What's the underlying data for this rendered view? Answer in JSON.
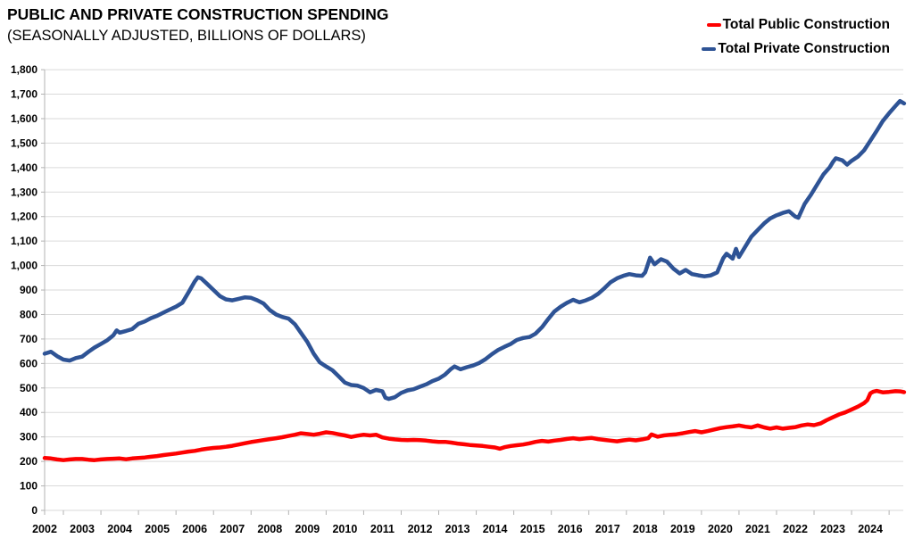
{
  "chart_data": {
    "type": "line",
    "title": "PUBLIC AND PRIVATE CONSTRUCTION SPENDING",
    "subtitle": "(SEASONALLY ADJUSTED, BILLIONS OF DOLLARS)",
    "ylim": [
      0,
      1800
    ],
    "y_tick_step": 100,
    "y_tick_labels": [
      "0",
      "100",
      "200",
      "300",
      "400",
      "500",
      "600",
      "700",
      "800",
      "900",
      "1,000",
      "1,100",
      "1,200",
      "1,300",
      "1,400",
      "1,500",
      "1,600",
      "1,700",
      "1,800"
    ],
    "x_tick_labels": [
      "2002",
      "2003",
      "2004",
      "2005",
      "2006",
      "2007",
      "2008",
      "2009",
      "2010",
      "2011",
      "2012",
      "2013",
      "2014",
      "2015",
      "2016",
      "2017",
      "2018",
      "2019",
      "2020",
      "2021",
      "2022",
      "2023",
      "2024"
    ],
    "x_range": [
      2002,
      2024.95
    ],
    "grid": true,
    "legend_position": "top-right",
    "grid_color": "#dadada",
    "axis_color": "#b3b3b3",
    "series": [
      {
        "name": "Total Public Construction",
        "color": "#fe0000",
        "points": [
          [
            2002.0,
            214
          ],
          [
            2002.17,
            212
          ],
          [
            2002.33,
            208
          ],
          [
            2002.5,
            205
          ],
          [
            2002.67,
            208
          ],
          [
            2002.83,
            210
          ],
          [
            2003.0,
            210
          ],
          [
            2003.17,
            207
          ],
          [
            2003.33,
            205
          ],
          [
            2003.5,
            208
          ],
          [
            2003.67,
            210
          ],
          [
            2003.83,
            211
          ],
          [
            2004.0,
            212
          ],
          [
            2004.17,
            209
          ],
          [
            2004.33,
            212
          ],
          [
            2004.5,
            214
          ],
          [
            2004.67,
            216
          ],
          [
            2004.83,
            219
          ],
          [
            2005.0,
            222
          ],
          [
            2005.17,
            226
          ],
          [
            2005.33,
            229
          ],
          [
            2005.5,
            232
          ],
          [
            2005.67,
            236
          ],
          [
            2005.83,
            240
          ],
          [
            2006.0,
            243
          ],
          [
            2006.17,
            248
          ],
          [
            2006.33,
            252
          ],
          [
            2006.5,
            255
          ],
          [
            2006.67,
            257
          ],
          [
            2006.83,
            260
          ],
          [
            2007.0,
            264
          ],
          [
            2007.17,
            269
          ],
          [
            2007.33,
            274
          ],
          [
            2007.5,
            279
          ],
          [
            2007.67,
            283
          ],
          [
            2007.83,
            287
          ],
          [
            2008.0,
            291
          ],
          [
            2008.17,
            295
          ],
          [
            2008.33,
            299
          ],
          [
            2008.5,
            304
          ],
          [
            2008.67,
            309
          ],
          [
            2008.83,
            315
          ],
          [
            2009.0,
            312
          ],
          [
            2009.17,
            309
          ],
          [
            2009.33,
            313
          ],
          [
            2009.5,
            319
          ],
          [
            2009.67,
            316
          ],
          [
            2009.83,
            311
          ],
          [
            2010.0,
            306
          ],
          [
            2010.17,
            300
          ],
          [
            2010.33,
            305
          ],
          [
            2010.5,
            309
          ],
          [
            2010.67,
            306
          ],
          [
            2010.83,
            309
          ],
          [
            2011.0,
            298
          ],
          [
            2011.17,
            293
          ],
          [
            2011.33,
            290
          ],
          [
            2011.5,
            288
          ],
          [
            2011.67,
            287
          ],
          [
            2011.83,
            288
          ],
          [
            2012.0,
            287
          ],
          [
            2012.17,
            285
          ],
          [
            2012.33,
            282
          ],
          [
            2012.5,
            280
          ],
          [
            2012.67,
            280
          ],
          [
            2012.83,
            277
          ],
          [
            2013.0,
            273
          ],
          [
            2013.17,
            270
          ],
          [
            2013.33,
            267
          ],
          [
            2013.5,
            265
          ],
          [
            2013.67,
            263
          ],
          [
            2013.83,
            260
          ],
          [
            2014.0,
            257
          ],
          [
            2014.13,
            252
          ],
          [
            2014.25,
            258
          ],
          [
            2014.42,
            263
          ],
          [
            2014.58,
            266
          ],
          [
            2014.75,
            269
          ],
          [
            2014.92,
            274
          ],
          [
            2015.08,
            280
          ],
          [
            2015.25,
            284
          ],
          [
            2015.42,
            281
          ],
          [
            2015.58,
            285
          ],
          [
            2015.75,
            288
          ],
          [
            2015.92,
            292
          ],
          [
            2016.08,
            295
          ],
          [
            2016.25,
            291
          ],
          [
            2016.42,
            294
          ],
          [
            2016.58,
            296
          ],
          [
            2016.75,
            291
          ],
          [
            2016.92,
            288
          ],
          [
            2017.08,
            285
          ],
          [
            2017.25,
            282
          ],
          [
            2017.42,
            286
          ],
          [
            2017.58,
            289
          ],
          [
            2017.75,
            286
          ],
          [
            2017.92,
            290
          ],
          [
            2018.08,
            295
          ],
          [
            2018.17,
            310
          ],
          [
            2018.33,
            301
          ],
          [
            2018.5,
            306
          ],
          [
            2018.67,
            309
          ],
          [
            2018.83,
            311
          ],
          [
            2019.0,
            315
          ],
          [
            2019.17,
            320
          ],
          [
            2019.33,
            324
          ],
          [
            2019.5,
            319
          ],
          [
            2019.67,
            324
          ],
          [
            2019.83,
            330
          ],
          [
            2020.0,
            336
          ],
          [
            2020.17,
            340
          ],
          [
            2020.33,
            343
          ],
          [
            2020.5,
            347
          ],
          [
            2020.67,
            342
          ],
          [
            2020.83,
            339
          ],
          [
            2021.0,
            347
          ],
          [
            2021.17,
            339
          ],
          [
            2021.33,
            334
          ],
          [
            2021.5,
            339
          ],
          [
            2021.67,
            334
          ],
          [
            2021.83,
            337
          ],
          [
            2022.0,
            340
          ],
          [
            2022.17,
            347
          ],
          [
            2022.33,
            351
          ],
          [
            2022.5,
            348
          ],
          [
            2022.67,
            355
          ],
          [
            2022.83,
            368
          ],
          [
            2023.0,
            380
          ],
          [
            2023.17,
            392
          ],
          [
            2023.33,
            400
          ],
          [
            2023.5,
            412
          ],
          [
            2023.67,
            424
          ],
          [
            2023.83,
            438
          ],
          [
            2023.92,
            450
          ],
          [
            2024.0,
            478
          ],
          [
            2024.08,
            485
          ],
          [
            2024.17,
            488
          ],
          [
            2024.33,
            482
          ],
          [
            2024.5,
            484
          ],
          [
            2024.67,
            487
          ],
          [
            2024.79,
            486
          ],
          [
            2024.9,
            483
          ]
        ]
      },
      {
        "name": "Total Private Construction",
        "color": "#2e5395",
        "points": [
          [
            2002.0,
            640
          ],
          [
            2002.17,
            648
          ],
          [
            2002.33,
            630
          ],
          [
            2002.5,
            616
          ],
          [
            2002.67,
            612
          ],
          [
            2002.83,
            622
          ],
          [
            2003.0,
            628
          ],
          [
            2003.17,
            648
          ],
          [
            2003.33,
            665
          ],
          [
            2003.5,
            680
          ],
          [
            2003.67,
            695
          ],
          [
            2003.83,
            715
          ],
          [
            2003.92,
            735
          ],
          [
            2004.0,
            726
          ],
          [
            2004.17,
            733
          ],
          [
            2004.33,
            740
          ],
          [
            2004.5,
            762
          ],
          [
            2004.67,
            772
          ],
          [
            2004.83,
            785
          ],
          [
            2005.0,
            795
          ],
          [
            2005.17,
            808
          ],
          [
            2005.33,
            820
          ],
          [
            2005.5,
            832
          ],
          [
            2005.67,
            848
          ],
          [
            2005.83,
            890
          ],
          [
            2006.0,
            935
          ],
          [
            2006.08,
            952
          ],
          [
            2006.17,
            948
          ],
          [
            2006.33,
            925
          ],
          [
            2006.5,
            900
          ],
          [
            2006.67,
            875
          ],
          [
            2006.83,
            862
          ],
          [
            2007.0,
            858
          ],
          [
            2007.17,
            864
          ],
          [
            2007.33,
            870
          ],
          [
            2007.5,
            868
          ],
          [
            2007.67,
            858
          ],
          [
            2007.83,
            845
          ],
          [
            2008.0,
            818
          ],
          [
            2008.17,
            800
          ],
          [
            2008.33,
            790
          ],
          [
            2008.5,
            783
          ],
          [
            2008.67,
            760
          ],
          [
            2008.83,
            725
          ],
          [
            2009.0,
            688
          ],
          [
            2009.17,
            640
          ],
          [
            2009.33,
            605
          ],
          [
            2009.5,
            588
          ],
          [
            2009.67,
            572
          ],
          [
            2009.83,
            548
          ],
          [
            2010.0,
            522
          ],
          [
            2010.17,
            512
          ],
          [
            2010.33,
            510
          ],
          [
            2010.5,
            500
          ],
          [
            2010.67,
            482
          ],
          [
            2010.83,
            492
          ],
          [
            2011.0,
            486
          ],
          [
            2011.08,
            460
          ],
          [
            2011.17,
            455
          ],
          [
            2011.33,
            462
          ],
          [
            2011.5,
            480
          ],
          [
            2011.67,
            490
          ],
          [
            2011.83,
            495
          ],
          [
            2012.0,
            505
          ],
          [
            2012.17,
            515
          ],
          [
            2012.33,
            528
          ],
          [
            2012.5,
            538
          ],
          [
            2012.67,
            555
          ],
          [
            2012.83,
            578
          ],
          [
            2012.92,
            588
          ],
          [
            2013.08,
            576
          ],
          [
            2013.25,
            585
          ],
          [
            2013.42,
            592
          ],
          [
            2013.58,
            602
          ],
          [
            2013.75,
            618
          ],
          [
            2013.92,
            638
          ],
          [
            2014.08,
            655
          ],
          [
            2014.25,
            668
          ],
          [
            2014.42,
            680
          ],
          [
            2014.58,
            696
          ],
          [
            2014.75,
            704
          ],
          [
            2014.92,
            708
          ],
          [
            2015.08,
            722
          ],
          [
            2015.25,
            748
          ],
          [
            2015.42,
            782
          ],
          [
            2015.58,
            812
          ],
          [
            2015.75,
            832
          ],
          [
            2015.92,
            848
          ],
          [
            2016.08,
            860
          ],
          [
            2016.25,
            850
          ],
          [
            2016.42,
            858
          ],
          [
            2016.58,
            868
          ],
          [
            2016.75,
            885
          ],
          [
            2016.92,
            908
          ],
          [
            2017.08,
            932
          ],
          [
            2017.25,
            948
          ],
          [
            2017.42,
            958
          ],
          [
            2017.58,
            965
          ],
          [
            2017.75,
            960
          ],
          [
            2017.92,
            958
          ],
          [
            2018.0,
            972
          ],
          [
            2018.13,
            1032
          ],
          [
            2018.25,
            1005
          ],
          [
            2018.42,
            1026
          ],
          [
            2018.58,
            1016
          ],
          [
            2018.75,
            988
          ],
          [
            2018.92,
            968
          ],
          [
            2019.08,
            982
          ],
          [
            2019.25,
            965
          ],
          [
            2019.42,
            960
          ],
          [
            2019.58,
            956
          ],
          [
            2019.75,
            960
          ],
          [
            2019.92,
            972
          ],
          [
            2020.08,
            1030
          ],
          [
            2020.17,
            1048
          ],
          [
            2020.33,
            1028
          ],
          [
            2020.42,
            1068
          ],
          [
            2020.5,
            1035
          ],
          [
            2020.67,
            1078
          ],
          [
            2020.83,
            1118
          ],
          [
            2021.0,
            1145
          ],
          [
            2021.17,
            1172
          ],
          [
            2021.33,
            1192
          ],
          [
            2021.5,
            1205
          ],
          [
            2021.67,
            1215
          ],
          [
            2021.83,
            1222
          ],
          [
            2022.0,
            1200
          ],
          [
            2022.08,
            1195
          ],
          [
            2022.25,
            1252
          ],
          [
            2022.42,
            1290
          ],
          [
            2022.58,
            1330
          ],
          [
            2022.75,
            1372
          ],
          [
            2022.92,
            1402
          ],
          [
            2023.0,
            1422
          ],
          [
            2023.08,
            1438
          ],
          [
            2023.25,
            1430
          ],
          [
            2023.38,
            1412
          ],
          [
            2023.5,
            1428
          ],
          [
            2023.67,
            1445
          ],
          [
            2023.83,
            1470
          ],
          [
            2024.0,
            1510
          ],
          [
            2024.17,
            1550
          ],
          [
            2024.33,
            1590
          ],
          [
            2024.5,
            1622
          ],
          [
            2024.67,
            1652
          ],
          [
            2024.79,
            1672
          ],
          [
            2024.9,
            1662
          ]
        ]
      }
    ]
  }
}
